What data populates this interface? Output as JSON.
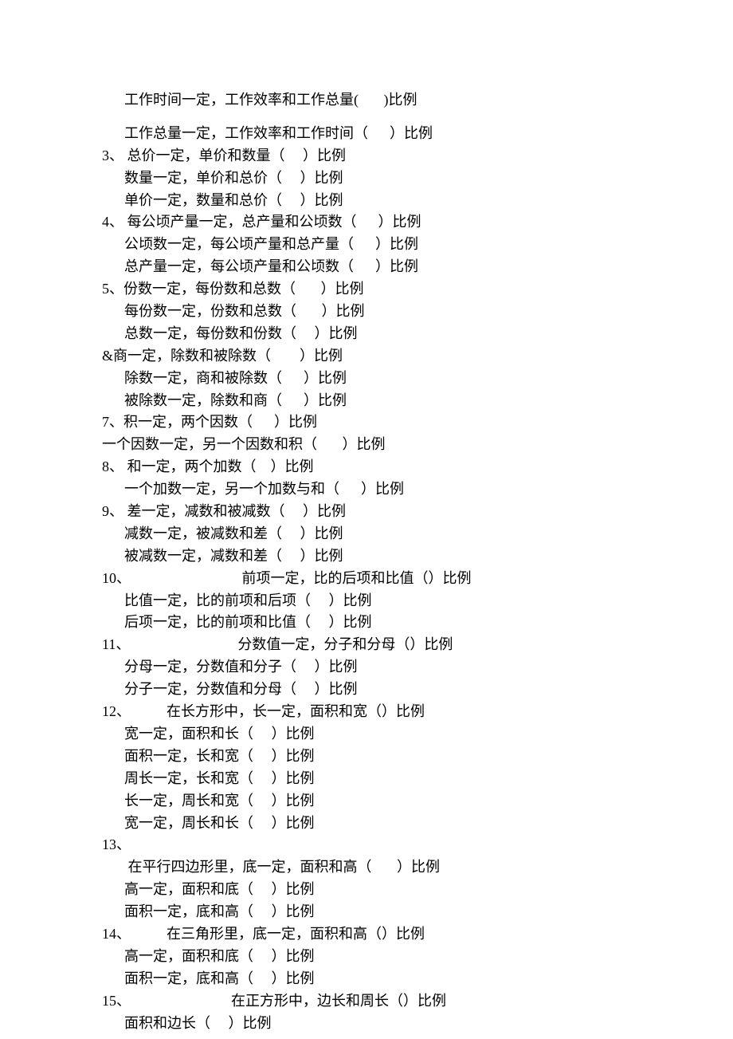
{
  "lines": [
    {
      "cls": "line indent",
      "text": "工作时间一定，工作效率和工作总量(       )比例"
    },
    {
      "cls": "spacer",
      "text": ""
    },
    {
      "cls": "line indent",
      "text": "工作总量一定，工作效率和工作时间（      ）比例"
    },
    {
      "cls": "line",
      "text": "3、 总价一定，单价和数量（     ）比例"
    },
    {
      "cls": "line indent",
      "text": "数量一定，单价和总价（     ）比例"
    },
    {
      "cls": "line indent",
      "text": "单价一定，数量和总价（     ）比例"
    },
    {
      "cls": "line",
      "text": "4、 每公顷产量一定，总产量和公顷数（      ）比例"
    },
    {
      "cls": "line indent",
      "text": "公顷数一定，每公顷产量和总产量（      ）比例"
    },
    {
      "cls": "line indent",
      "text": "总产量一定，每公顷产量和公顷数（      ）比例"
    },
    {
      "cls": "line",
      "text": "5、份数一定，每份数和总数（       ）比例"
    },
    {
      "cls": "line indent",
      "text": "每份数一定，份数和总数（       ）比例"
    },
    {
      "cls": "line indent",
      "text": "总数一定，每份数和份数（     ）比例"
    },
    {
      "cls": "line",
      "text": "&商一定，除数和被除数（        ）比例"
    },
    {
      "cls": "line indent",
      "text": "除数一定，商和被除数（      ）比例"
    },
    {
      "cls": "line indent",
      "text": "被除数一定，除数和商（      ）比例"
    },
    {
      "cls": "line",
      "text": "7、积一定，两个因数（      ）比例"
    },
    {
      "cls": "line",
      "text": "一个因数一定，另一个因数和积（       ）比例"
    },
    {
      "cls": "line",
      "text": "8、 和一定，两个加数（    ）比例"
    },
    {
      "cls": "line indent",
      "text": "一个加数一定，另一个加数与和（      ）比例"
    },
    {
      "cls": "line",
      "text": "9、 差一定，减数和被减数（     ）比例"
    },
    {
      "cls": "line indent",
      "text": "减数一定，被减数和差（     ）比例"
    },
    {
      "cls": "line indent",
      "text": "被减数一定，减数和差（     ）比例"
    },
    {
      "cls": "line",
      "text": "10、                               前项一定，比的后项和比值（）比例"
    },
    {
      "cls": "line indent",
      "text": "比值一定，比的前项和后项（     ）比例"
    },
    {
      "cls": "line indent",
      "text": "后项一定，比的前项和比值（     ）比例"
    },
    {
      "cls": "line",
      "text": "11、                              分数值一定，分子和分母（）比例"
    },
    {
      "cls": "line indent",
      "text": "分母一定，分数值和分子（     ）比例"
    },
    {
      "cls": "line indent",
      "text": "分子一定，分数值和分母（     ）比例"
    },
    {
      "cls": "line",
      "text": "12、          在长方形中，长一定，面积和宽（）比例"
    },
    {
      "cls": "line indent",
      "text": "宽一定，面积和长（     ）比例"
    },
    {
      "cls": "line indent",
      "text": "面积一定，长和宽（     ）比例"
    },
    {
      "cls": "line indent",
      "text": "周长一定，长和宽（     ）比例"
    },
    {
      "cls": "line indent",
      "text": "长一定，周长和宽（     ）比例"
    },
    {
      "cls": "line indent",
      "text": "宽一定，周长和长（     ）比例"
    },
    {
      "cls": "line",
      "text": "13、"
    },
    {
      "cls": "line indent",
      "text": " 在平行四边形里，底一定，面积和高（       ）比例"
    },
    {
      "cls": "line indent",
      "text": "高一定，面积和底（     ）比例"
    },
    {
      "cls": "line indent",
      "text": "面积一定，底和高（     ）比例"
    },
    {
      "cls": "line",
      "text": "14、          在三角形里，底一定，面积和高（）比例"
    },
    {
      "cls": "line indent",
      "text": "高一定，面积和底（     ）比例"
    },
    {
      "cls": "line indent",
      "text": "面积一定，底和高（     ）比例"
    },
    {
      "cls": "line",
      "text": "15、                            在正方形中，边长和周长（）比例"
    },
    {
      "cls": "line indent",
      "text": "面积和边长（     ）比例"
    }
  ]
}
